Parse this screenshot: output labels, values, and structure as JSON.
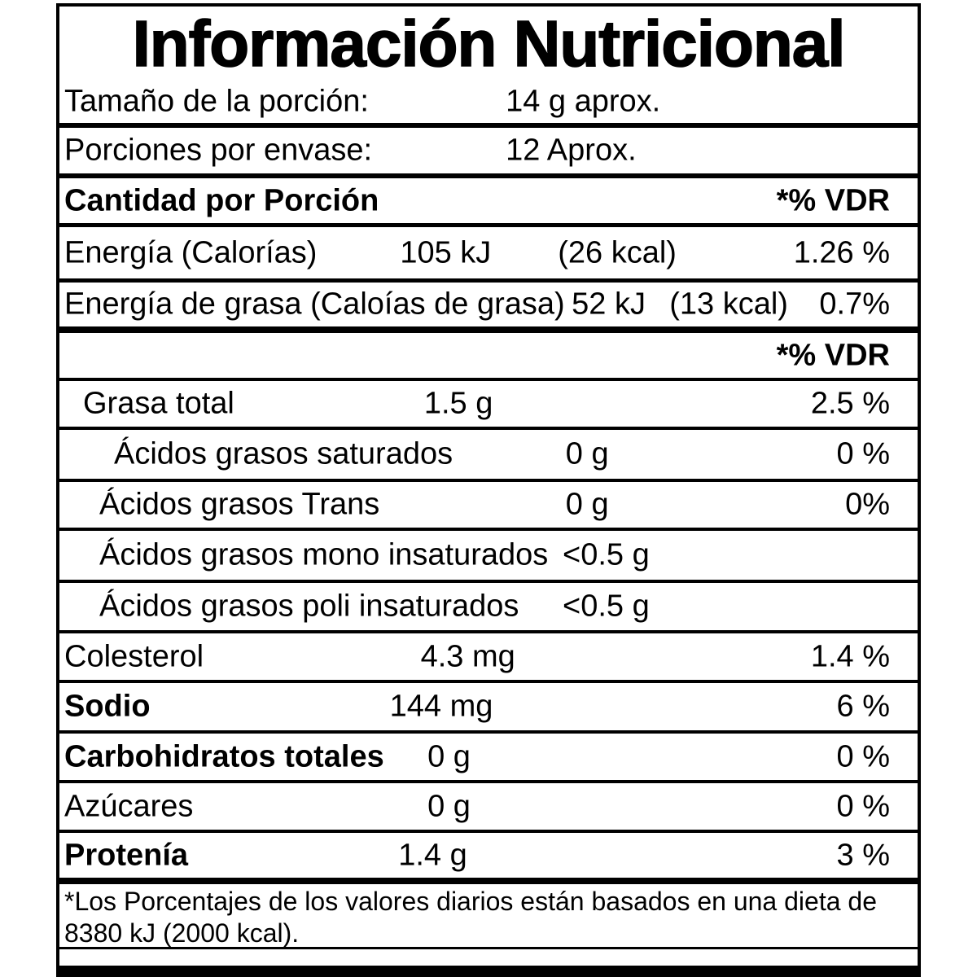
{
  "title": "Información Nutricional",
  "serving": {
    "size_label": "Tamaño de la porción:",
    "size_value": "14 g aprox.",
    "per_container_label": "Porciones por envase:",
    "per_container_value": "12 Aprox."
  },
  "header": {
    "amount_label": "Cantidad por Porción",
    "vdr_label": "*% VDR"
  },
  "rows": [
    {
      "label": "Energía (Calorías)",
      "amount": "105 kJ",
      "kcal": "(26 kcal)",
      "vdr": "1.26 %"
    },
    {
      "label": "Energía de grasa (Caloías de grasa)",
      "amount": "52 kJ",
      "kcal": "(13 kcal)",
      "vdr": "0.7%"
    },
    {
      "label": "Grasa total",
      "amount": "1.5 g",
      "vdr": "2.5 %"
    },
    {
      "label": "Ácidos grasos saturados",
      "amount": "0 g",
      "vdr": "0 %"
    },
    {
      "label": "Ácidos grasos Trans",
      "amount": "0 g",
      "vdr": "0%"
    },
    {
      "label": "Ácidos grasos mono insaturados",
      "amount": "<0.5 g",
      "vdr": ""
    },
    {
      "label": "Ácidos grasos poli insaturados",
      "amount": "<0.5 g",
      "vdr": ""
    },
    {
      "label": "Colesterol",
      "amount": "4.3 mg",
      "vdr": "1.4 %"
    },
    {
      "label": "Sodio",
      "amount": "144 mg",
      "vdr": "6 %"
    },
    {
      "label": "Carbohidratos totales",
      "amount": "0 g",
      "vdr": "0 %"
    },
    {
      "label": "Azúcares",
      "amount": "0 g",
      "vdr": "0 %"
    },
    {
      "label": "Protenía",
      "amount": "1.4 g",
      "vdr": "3 %"
    }
  ],
  "footnote": "*Los Porcentajes de los valores diarios están basados en una dieta de 8380 kJ (2000 kcal).",
  "colors": {
    "ink": "#000000",
    "background": "#ffffff"
  }
}
